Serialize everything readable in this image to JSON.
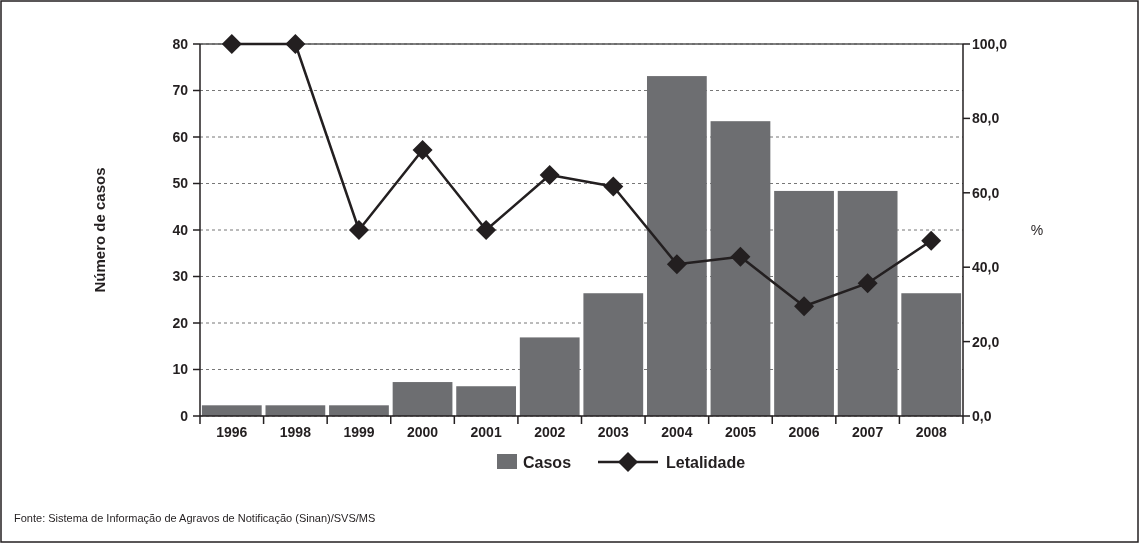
{
  "chart_data": {
    "type": "bar",
    "categories": [
      "1996",
      "1998",
      "1999",
      "2000",
      "2001",
      "2002",
      "2003",
      "2004",
      "2005",
      "2006",
      "2007",
      "2008"
    ],
    "series": [
      {
        "name": "Casos",
        "color": "#6d6e71",
        "values": [
          2.3,
          2.3,
          2.3,
          7.3,
          6.4,
          16.9,
          26.4,
          73.1,
          63.4,
          48.4,
          48.4,
          26.4
        ]
      },
      {
        "name": "Letalidade",
        "type": "line",
        "axis": "y2",
        "color": "#231f20",
        "marker": "diamond",
        "values": [
          100,
          100,
          50,
          71.5,
          50,
          64.8,
          61.7,
          40.8,
          42.8,
          29.5,
          35.7,
          47.1
        ]
      }
    ],
    "ylabel": "Número de casos",
    "y2label": "%",
    "ylim": [
      0,
      80
    ],
    "yticks": [
      0,
      10,
      20,
      30,
      40,
      50,
      60,
      70,
      80
    ],
    "y2lim": [
      0,
      100
    ],
    "y2ticks": [
      {
        "value": 0,
        "label": "0,0"
      },
      {
        "value": 20,
        "label": "20,0"
      },
      {
        "value": 40,
        "label": "40,0"
      },
      {
        "value": 60,
        "label": "60,0"
      },
      {
        "value": 80,
        "label": "80,0"
      },
      {
        "value": 100,
        "label": "100,0"
      }
    ],
    "grid": "y",
    "legend": "bottom",
    "annotations": [
      "Fonte: Sistema de Informação de Agravos de Notificação (Sinan)/SVS/MS"
    ]
  }
}
